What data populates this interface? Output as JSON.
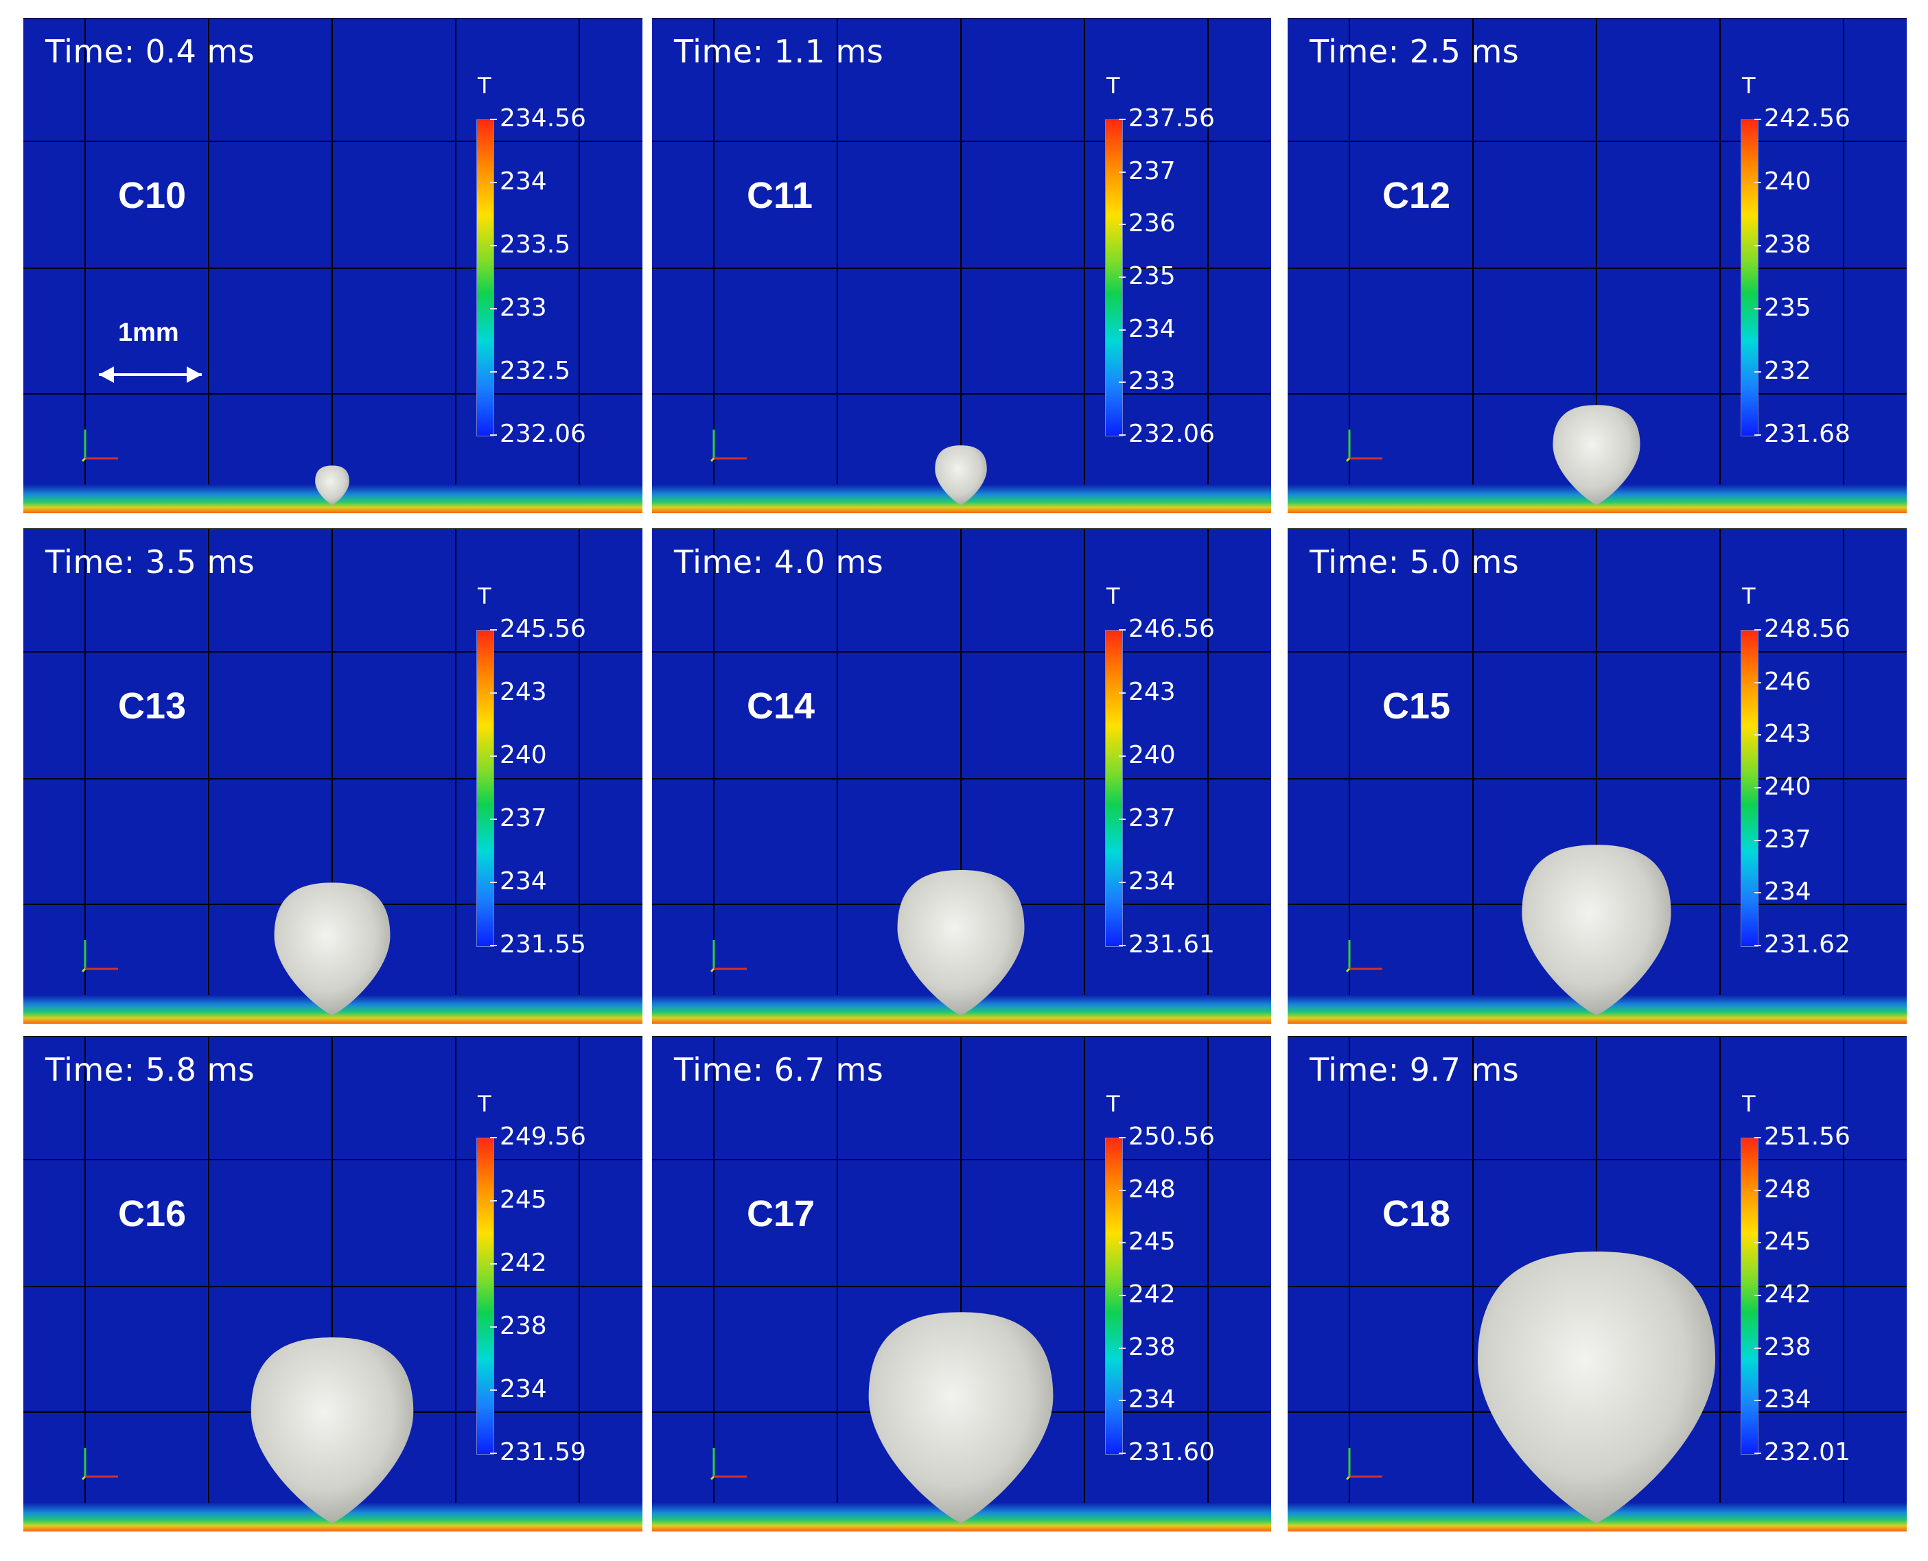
{
  "colorbar_title": "T",
  "scale_bar_label": "1mm",
  "colors": {
    "background": "#0a1fae",
    "grid": "#000000",
    "bubble": "#dcdcd6",
    "hot": "#ff2a10",
    "cold": "#0a20ff"
  },
  "panels": [
    {
      "time": "Time: 0.4 ms",
      "case": "C10",
      "ticks": [
        "234.56",
        "234",
        "233.5",
        "233",
        "232.5",
        "232.06"
      ],
      "bubble_size": 0.08
    },
    {
      "time": "Time: 1.1 ms",
      "case": "C11",
      "ticks": [
        "237.56",
        "237",
        "236",
        "235",
        "234",
        "233",
        "232.06"
      ],
      "bubble_size": 0.16
    },
    {
      "time": "Time: 2.5 ms",
      "case": "C12",
      "ticks": [
        "242.56",
        "240",
        "238",
        "235",
        "232",
        "231.68"
      ],
      "bubble_size": 0.32
    },
    {
      "time": "Time: 3.5 ms",
      "case": "C13",
      "ticks": [
        "245.56",
        "243",
        "240",
        "237",
        "234",
        "231.55"
      ],
      "bubble_size": 0.45
    },
    {
      "time": "Time: 4.0 ms",
      "case": "C14",
      "ticks": [
        "246.56",
        "243",
        "240",
        "237",
        "234",
        "231.61"
      ],
      "bubble_size": 0.5
    },
    {
      "time": "Time: 5.0 ms",
      "case": "C15",
      "ticks": [
        "248.56",
        "246",
        "243",
        "240",
        "237",
        "234",
        "231.62"
      ],
      "bubble_size": 0.6
    },
    {
      "time": "Time: 5.8 ms",
      "case": "C16",
      "ticks": [
        "249.56",
        "245",
        "242",
        "238",
        "234",
        "231.59"
      ],
      "bubble_size": 0.66
    },
    {
      "time": "Time: 6.7 ms",
      "case": "C17",
      "ticks": [
        "250.56",
        "248",
        "245",
        "242",
        "238",
        "234",
        "231.60"
      ],
      "bubble_size": 0.76
    },
    {
      "time": "Time: 9.7 ms",
      "case": "C18",
      "ticks": [
        "251.56",
        "248",
        "245",
        "242",
        "238",
        "234",
        "232.01"
      ],
      "bubble_size": 1.0
    }
  ]
}
